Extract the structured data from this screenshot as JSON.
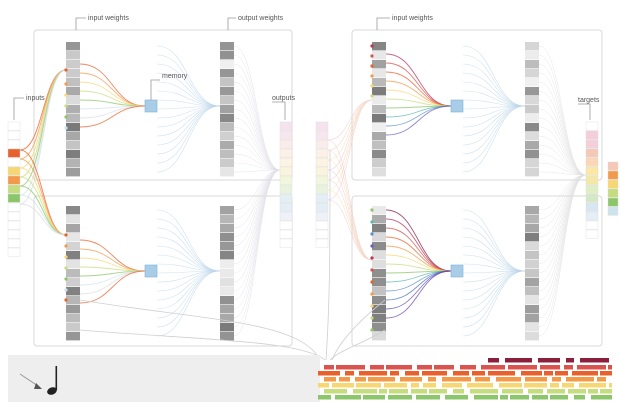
{
  "labels": {
    "input_weights_left": "input weights",
    "output_weights_left": "output weights",
    "memory": "memory",
    "inputs": "inputs",
    "outputs": "outputs",
    "input_weights_right": "input weights",
    "targets": "targets"
  },
  "colors": {
    "panel_stroke": "#d8d8d8",
    "memory_cell": "#a9cde6",
    "piano_roll_bg": "#eeeeee",
    "spectrum": [
      "#e8612c",
      "#f39a4a",
      "#f7d774",
      "#c5dd7e",
      "#8cc66a",
      "#cfe3ef"
    ]
  },
  "icons": {
    "music_note": "music-note-icon",
    "pointer": "arrow-pointer-icon"
  }
}
